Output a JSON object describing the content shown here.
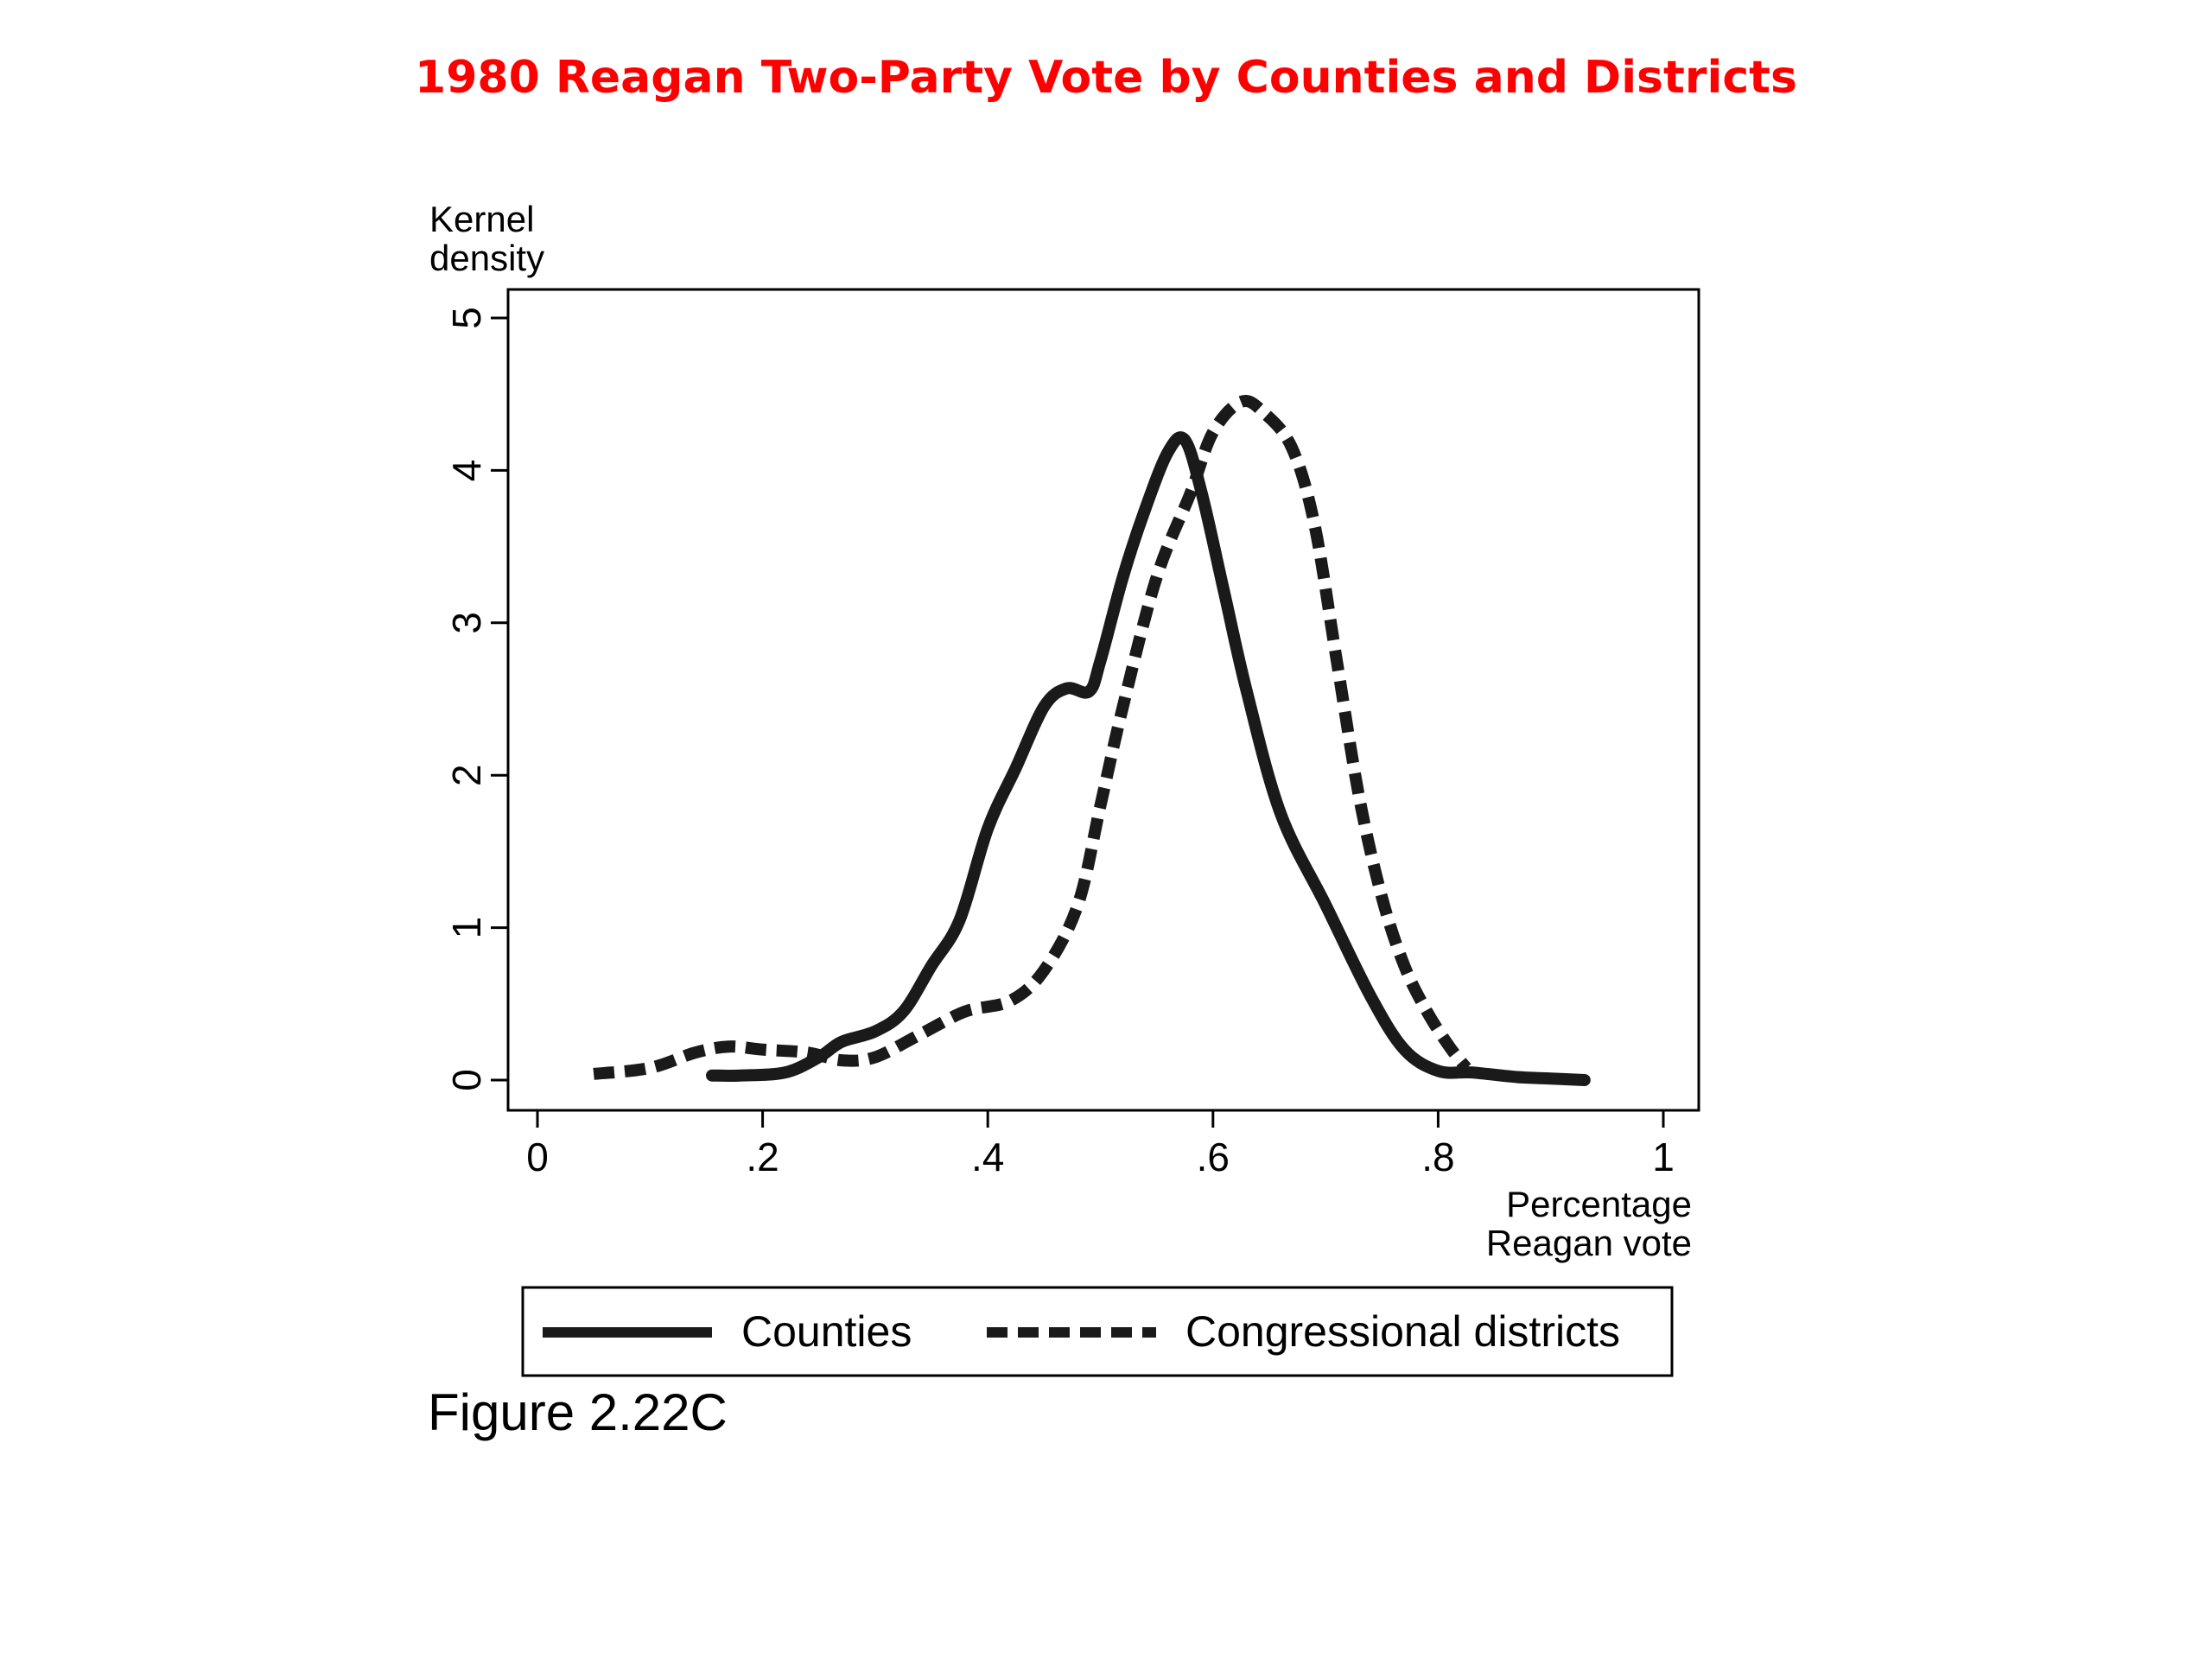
{
  "slide": {
    "title": "1980 Reagan Two-Party Vote by Counties and Districts",
    "title_color": "#ff0000",
    "caption": "Figure 2.22C"
  },
  "chart_data": {
    "type": "line",
    "ylabel": [
      "Kernel",
      "density"
    ],
    "xlabel": [
      "Percentage",
      "Reagan vote"
    ],
    "xlim": [
      0,
      1
    ],
    "ylim": [
      0,
      5
    ],
    "xticks": [
      0,
      0.2,
      0.4,
      0.6,
      0.8,
      1
    ],
    "xtick_labels": [
      "0",
      ".2",
      ".4",
      ".6",
      ".8",
      "1"
    ],
    "yticks": [
      0,
      1,
      2,
      3,
      4,
      5
    ],
    "ytick_labels": [
      "0",
      "1",
      "2",
      "3",
      "4",
      "5"
    ],
    "grid": false,
    "legend_position": "bottom",
    "series": [
      {
        "name": "Counties",
        "style": "solid",
        "color": "#1a1a1a",
        "x": [
          0.155,
          0.18,
          0.22,
          0.25,
          0.27,
          0.3,
          0.325,
          0.35,
          0.375,
          0.4,
          0.425,
          0.45,
          0.47,
          0.49,
          0.5,
          0.52,
          0.54,
          0.56,
          0.575,
          0.59,
          0.61,
          0.63,
          0.66,
          0.7,
          0.74,
          0.77,
          0.8,
          0.83,
          0.87,
          0.9,
          0.93
        ],
        "y": [
          0.03,
          0.03,
          0.05,
          0.15,
          0.25,
          0.32,
          0.45,
          0.75,
          1.05,
          1.65,
          2.05,
          2.45,
          2.57,
          2.55,
          2.75,
          3.3,
          3.75,
          4.12,
          4.2,
          3.85,
          3.2,
          2.55,
          1.75,
          1.15,
          0.55,
          0.2,
          0.06,
          0.05,
          0.02,
          0.01,
          0.0
        ]
      },
      {
        "name": "Congressional districts",
        "style": "dashed",
        "color": "#1a1a1a",
        "x": [
          0.05,
          0.1,
          0.14,
          0.17,
          0.2,
          0.24,
          0.27,
          0.3,
          0.34,
          0.38,
          0.42,
          0.45,
          0.48,
          0.5,
          0.52,
          0.55,
          0.58,
          0.6,
          0.625,
          0.645,
          0.67,
          0.69,
          0.71,
          0.73,
          0.75,
          0.77,
          0.79,
          0.81,
          0.825
        ],
        "y": [
          0.04,
          0.08,
          0.18,
          0.22,
          0.2,
          0.18,
          0.13,
          0.15,
          0.3,
          0.45,
          0.52,
          0.72,
          1.15,
          1.8,
          2.45,
          3.3,
          3.85,
          4.25,
          4.45,
          4.38,
          4.15,
          3.65,
          2.75,
          1.85,
          1.2,
          0.75,
          0.45,
          0.22,
          0.08
        ]
      }
    ]
  }
}
